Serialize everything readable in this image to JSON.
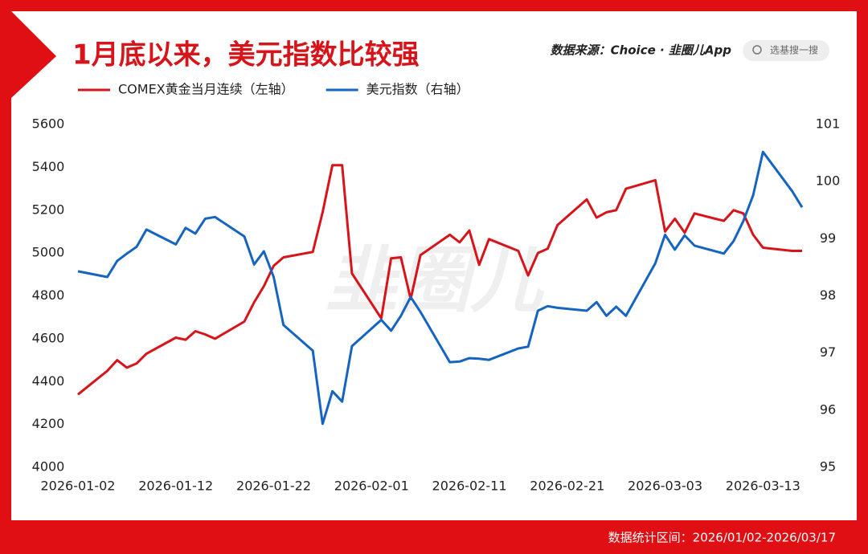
{
  "chart_data": {
    "type": "line",
    "title": "1月底以来，美元指数比较强",
    "source": "数据来源：Choice · 韭圈儿App",
    "search": "选基搜一搜",
    "watermark": "韭圈儿",
    "footer": "数据统计区间：2026/01/02-2026/03/17",
    "x": [
      "2026-01-02",
      "2026-01-05",
      "2026-01-06",
      "2026-01-07",
      "2026-01-08",
      "2026-01-09",
      "2026-01-12",
      "2026-01-13",
      "2026-01-14",
      "2026-01-15",
      "2026-01-16",
      "2026-01-19",
      "2026-01-20",
      "2026-01-21",
      "2026-01-22",
      "2026-01-23",
      "2026-01-26",
      "2026-01-27",
      "2026-01-28",
      "2026-01-29",
      "2026-01-30",
      "2026-02-02",
      "2026-02-03",
      "2026-02-04",
      "2026-02-05",
      "2026-02-06",
      "2026-02-09",
      "2026-02-10",
      "2026-02-11",
      "2026-02-12",
      "2026-02-13",
      "2026-02-16",
      "2026-02-17",
      "2026-02-18",
      "2026-02-19",
      "2026-02-20",
      "2026-02-23",
      "2026-02-24",
      "2026-02-25",
      "2026-02-26",
      "2026-02-27",
      "2026-03-02",
      "2026-03-03",
      "2026-03-04",
      "2026-03-05",
      "2026-03-06",
      "2026-03-09",
      "2026-03-10",
      "2026-03-11",
      "2026-03-12",
      "2026-03-13",
      "2026-03-16",
      "2026-03-17"
    ],
    "series": [
      {
        "name": "COMEX黄金当月连续（左轴）",
        "color": "#d7141a",
        "values": [
          4340,
          4450,
          4500,
          4465,
          4485,
          4530,
          4605,
          4595,
          4635,
          4620,
          4600,
          4680,
          4770,
          4845,
          4940,
          4980,
          5005,
          5190,
          5410,
          5410,
          4905,
          4695,
          4975,
          4980,
          4785,
          4990,
          5085,
          5050,
          5105,
          4945,
          5065,
          5010,
          4895,
          5000,
          5020,
          5130,
          5250,
          5165,
          5190,
          5200,
          5300,
          5340,
          5100,
          5160,
          5095,
          5185,
          5150,
          5200,
          5185,
          5085,
          5025,
          5010,
          5010
        ]
      },
      {
        "name": "美元指数（右轴）",
        "color": "#1565c0",
        "axis": "y2",
        "values": [
          98.43,
          98.33,
          98.61,
          98.74,
          98.86,
          99.16,
          98.9,
          99.19,
          99.09,
          99.35,
          99.38,
          99.04,
          98.55,
          98.78,
          98.33,
          97.49,
          97.04,
          95.76,
          96.33,
          96.15,
          97.12,
          97.58,
          97.39,
          97.65,
          97.98,
          97.72,
          96.84,
          96.85,
          96.91,
          96.9,
          96.88,
          97.08,
          97.11,
          97.74,
          97.82,
          97.79,
          97.74,
          97.89,
          97.65,
          97.81,
          97.65,
          98.57,
          99.07,
          98.81,
          99.06,
          98.88,
          98.74,
          98.96,
          99.31,
          99.76,
          100.52,
          99.83,
          99.55
        ]
      }
    ],
    "xlim": [
      "2026-01-02",
      "2026-03-17"
    ],
    "xticks": [
      "2026-01-02",
      "2026-01-12",
      "2026-01-22",
      "2026-02-01",
      "2026-02-11",
      "2026-02-21",
      "2026-03-03",
      "2026-03-13"
    ],
    "ylim": [
      4000,
      5600
    ],
    "yticks": [
      4000,
      4200,
      4400,
      4600,
      4800,
      5000,
      5200,
      5400,
      5600
    ],
    "y2lim": [
      95,
      101
    ],
    "y2ticks": [
      95,
      96,
      97,
      98,
      99,
      100,
      101
    ],
    "grid": false
  }
}
